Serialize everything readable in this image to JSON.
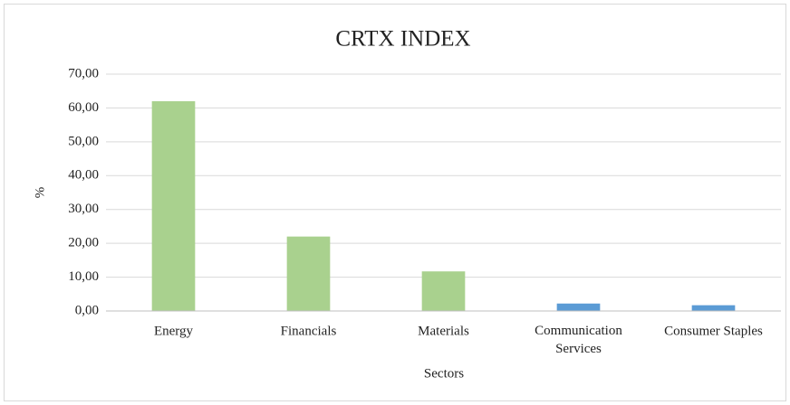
{
  "chart_data": {
    "type": "bar",
    "title": "CRTX INDEX",
    "x_label": "Sectors",
    "y_label": "%",
    "categories": [
      "Energy",
      "Financials",
      "Materials",
      "Communication Services",
      "Consumer Staples"
    ],
    "values": [
      62,
      22,
      11.7,
      2.2,
      1.7
    ],
    "colors": [
      "#a9d18e",
      "#a9d18e",
      "#a9d18e",
      "#5b9bd5",
      "#5b9bd5"
    ],
    "ylim": [
      0,
      70
    ],
    "yticks": [
      {
        "value": 0,
        "label": "0,00"
      },
      {
        "value": 10,
        "label": "10,00"
      },
      {
        "value": 20,
        "label": "20,00"
      },
      {
        "value": 30,
        "label": "30,00"
      },
      {
        "value": 40,
        "label": "40,00"
      },
      {
        "value": 50,
        "label": "50,00"
      },
      {
        "value": 60,
        "label": "60,00"
      },
      {
        "value": 70,
        "label": "70,00"
      }
    ],
    "grid": true
  }
}
